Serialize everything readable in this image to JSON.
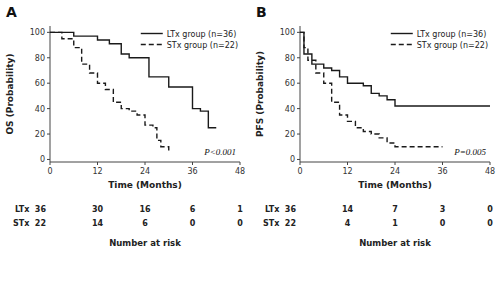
{
  "chart_data": [
    {
      "type": "step",
      "title": "A",
      "xlabel": "Time (Months)",
      "ylabel": "OS (Probability)",
      "annotations": [
        "P<0.001"
      ],
      "series": [
        {
          "name": "LTx group (n=36)",
          "color": "#1a1a1a",
          "line_style": "solid",
          "x": [
            0,
            3,
            6,
            9,
            12,
            13,
            15,
            18,
            20,
            24,
            25,
            27,
            30,
            32,
            36,
            38,
            40,
            42
          ],
          "values": [
            100,
            100,
            97,
            97,
            94,
            94,
            91,
            83,
            80,
            80,
            65,
            65,
            57,
            57,
            40,
            38,
            25,
            25
          ]
        },
        {
          "name": "STx group (n=22)",
          "color": "#1a1a1a",
          "line_style": "dashed",
          "x": [
            0,
            3,
            6,
            8,
            10,
            12,
            14,
            16,
            18,
            20,
            22,
            24,
            26,
            27,
            28,
            30
          ],
          "values": [
            100,
            95,
            88,
            75,
            68,
            60,
            55,
            45,
            40,
            38,
            35,
            27,
            25,
            15,
            10,
            5
          ]
        }
      ],
      "at_risk": {
        "title": "Number at risk",
        "x": [
          12,
          24,
          36,
          48
        ],
        "rows": [
          {
            "label": "LTx  36",
            "values": [
              30,
              16,
              6,
              1
            ]
          },
          {
            "label": "STx  22",
            "values": [
              14,
              6,
              0,
              0
            ]
          }
        ]
      },
      "xlim": [
        0,
        48
      ],
      "xticks": [
        0,
        12,
        24,
        36,
        48
      ],
      "ylim": [
        -2,
        105
      ],
      "yticks": [
        0,
        20,
        40,
        60,
        80,
        100
      ],
      "grid": false,
      "legend": "upper right"
    },
    {
      "type": "step",
      "title": "B",
      "xlabel": "Time (Months)",
      "ylabel": "PFS (Probability)",
      "annotations": [
        "P=0.005"
      ],
      "series": [
        {
          "name": "LTx group (n=36)",
          "color": "#1a1a1a",
          "line_style": "solid",
          "x": [
            0,
            1,
            2,
            3,
            4,
            6,
            8,
            10,
            12,
            14,
            16,
            18,
            20,
            22,
            24,
            26,
            48
          ],
          "values": [
            100,
            83,
            83,
            75,
            75,
            72,
            70,
            65,
            60,
            60,
            58,
            52,
            50,
            47,
            42,
            42,
            42
          ]
        },
        {
          "name": "STx group (n=22)",
          "color": "#1a1a1a",
          "line_style": "dashed",
          "x": [
            0,
            1,
            2,
            4,
            6,
            8,
            10,
            12,
            14,
            16,
            18,
            20,
            22,
            24,
            26,
            30,
            36
          ],
          "values": [
            100,
            88,
            78,
            68,
            60,
            45,
            35,
            30,
            25,
            22,
            20,
            17,
            13,
            10,
            10,
            10,
            10
          ]
        }
      ],
      "at_risk": {
        "title": "Number at risk",
        "x": [
          12,
          24,
          36,
          48
        ],
        "rows": [
          {
            "label": "LTx  36",
            "values": [
              14,
              7,
              3,
              0
            ]
          },
          {
            "label": "STx  22",
            "values": [
              4,
              1,
              0,
              0
            ]
          }
        ]
      },
      "xlim": [
        0,
        48
      ],
      "xticks": [
        0,
        12,
        24,
        36,
        48
      ],
      "ylim": [
        -2,
        105
      ],
      "yticks": [
        0,
        20,
        40,
        60,
        80,
        100
      ],
      "grid": false,
      "legend": "upper right"
    }
  ]
}
